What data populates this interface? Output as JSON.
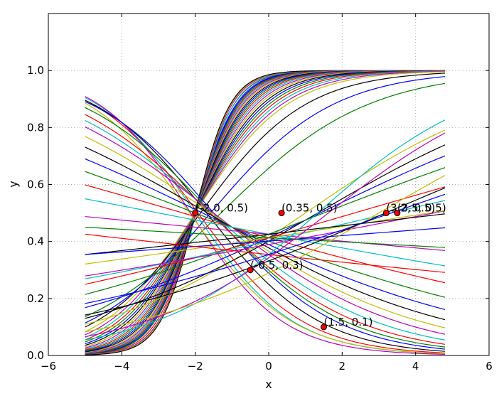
{
  "chart_data": {
    "type": "line",
    "xlabel": "x",
    "ylabel": "y",
    "xlim": [
      -6,
      6
    ],
    "ylim": [
      0,
      1.2
    ],
    "xticks": [
      "−6",
      "−4",
      "−2",
      "0",
      "2",
      "4",
      "6"
    ],
    "yticks": [
      "0.0",
      "0.2",
      "0.4",
      "0.6",
      "0.8",
      "1.0"
    ],
    "grid": true,
    "line_x_range": [
      -5,
      4.8
    ],
    "series_model": "logistic curves y = 1/(1+exp(-(a*x+b)))",
    "series_colors": [
      "#0000ff",
      "#008000",
      "#ff0000",
      "#00bfbf",
      "#bf00bf",
      "#bfbf00",
      "#000000"
    ],
    "series_params": [
      [
        1.8,
        3.6
      ],
      [
        1.85,
        3.75
      ],
      [
        1.9,
        3.8
      ],
      [
        1.95,
        3.85
      ],
      [
        2.0,
        4.0
      ],
      [
        2.05,
        4.1
      ],
      [
        2.1,
        4.2
      ],
      [
        1.75,
        3.5
      ],
      [
        1.7,
        3.4
      ],
      [
        1.65,
        3.3
      ],
      [
        1.6,
        3.2
      ],
      [
        1.55,
        3.1
      ],
      [
        1.5,
        3.0
      ],
      [
        1.45,
        2.9
      ],
      [
        1.4,
        2.8
      ],
      [
        1.35,
        2.7
      ],
      [
        1.3,
        2.6
      ],
      [
        1.25,
        2.5
      ],
      [
        1.2,
        2.4
      ],
      [
        1.15,
        2.3
      ],
      [
        1.1,
        2.2
      ],
      [
        1.05,
        2.1
      ],
      [
        1.0,
        2.0
      ],
      [
        0.95,
        1.9
      ],
      [
        0.9,
        1.8
      ],
      [
        0.85,
        1.7
      ],
      [
        0.8,
        1.6
      ],
      [
        0.7,
        1.3
      ],
      [
        0.6,
        0.95
      ],
      [
        0.5,
        0.65
      ],
      [
        -0.7,
        -1.35
      ],
      [
        -0.75,
        -1.5
      ],
      [
        -0.8,
        -1.7
      ],
      [
        -0.72,
        -1.55
      ],
      [
        -0.65,
        -1.1
      ],
      [
        -0.6,
        -0.9
      ],
      [
        -0.55,
        -0.85
      ],
      [
        -0.5,
        -0.8
      ],
      [
        -0.45,
        -0.7
      ],
      [
        -0.4,
        -0.6
      ],
      [
        -0.35,
        -0.55
      ],
      [
        -0.3,
        -0.5
      ],
      [
        -0.25,
        -0.45
      ],
      [
        -0.2,
        -0.4
      ],
      [
        -0.15,
        -0.35
      ],
      [
        -0.1,
        -0.3
      ],
      [
        -0.05,
        -0.3
      ],
      [
        0.35,
        -0.35
      ],
      [
        0.3,
        -0.4
      ],
      [
        0.25,
        -0.35
      ],
      [
        0.2,
        -0.3
      ],
      [
        0.15,
        -0.35
      ],
      [
        0.12,
        -0.4
      ],
      [
        0.1,
        -0.45
      ],
      [
        0.08,
        -0.35
      ],
      [
        0.06,
        -0.3
      ],
      [
        0.04,
        -0.4
      ],
      [
        -0.03,
        -0.35
      ],
      [
        -0.06,
        -0.6
      ],
      [
        0.45,
        -0.6
      ],
      [
        0.4,
        -0.65
      ],
      [
        0.3,
        -0.9
      ],
      [
        0.22,
        -0.7
      ],
      [
        0.18,
        -0.6
      ]
    ],
    "points": [
      {
        "x": -2.0,
        "y": 0.5,
        "label": "(-2.0, 0.5)"
      },
      {
        "x": 0.35,
        "y": 0.5,
        "label": "(0.35, 0.5)"
      },
      {
        "x": -0.5,
        "y": 0.3,
        "label": "(-0.5, 0.3)"
      },
      {
        "x": 1.5,
        "y": 0.1,
        "label": "(1.5, 0.1)"
      },
      {
        "x": 3.2,
        "y": 0.5,
        "label": "(3.2, 0.5)"
      },
      {
        "x": 3.5,
        "y": 0.5,
        "label": "(3.5, 0.5)"
      }
    ],
    "point_color": "#ff0000"
  }
}
